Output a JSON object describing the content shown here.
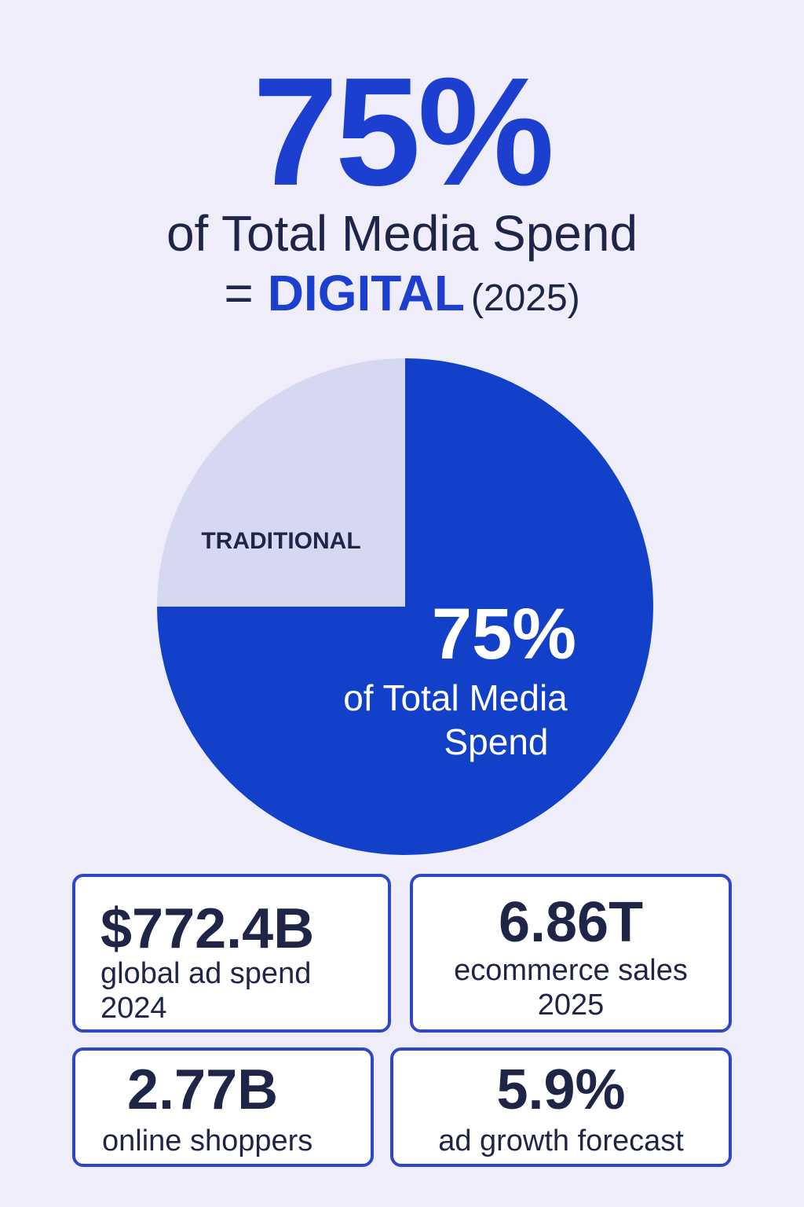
{
  "headline": {
    "big_value": "75%",
    "line1": "of Total Media Spend",
    "equals": "=",
    "digital": "DIGITAL",
    "year": "(2025)"
  },
  "chart_data": {
    "type": "pie",
    "slices": [
      {
        "label": "",
        "value": 75,
        "color": "#1240c8"
      },
      {
        "label": "TRADITIONAL",
        "value": 25,
        "color": "#d6d8f2"
      }
    ],
    "center_value": "75%",
    "center_label_line1": "of Total Media",
    "center_label_line2": "Spend"
  },
  "stats": [
    {
      "value": "$772.4B",
      "label_line1": "global ad spend",
      "label_line2": "2024"
    },
    {
      "value": "6.86T",
      "label_line1": "ecommerce sales",
      "label_line2": "2025"
    },
    {
      "value": "2.77B",
      "label_line1": "online shoppers",
      "label_line2": ""
    },
    {
      "value": "5.9%",
      "label_line1": "ad growth forecast",
      "label_line2": ""
    }
  ],
  "colors": {
    "accent": "#1c3fcf",
    "text": "#1e2547",
    "background": "#eeedf9",
    "card_border": "#2e47c9"
  }
}
